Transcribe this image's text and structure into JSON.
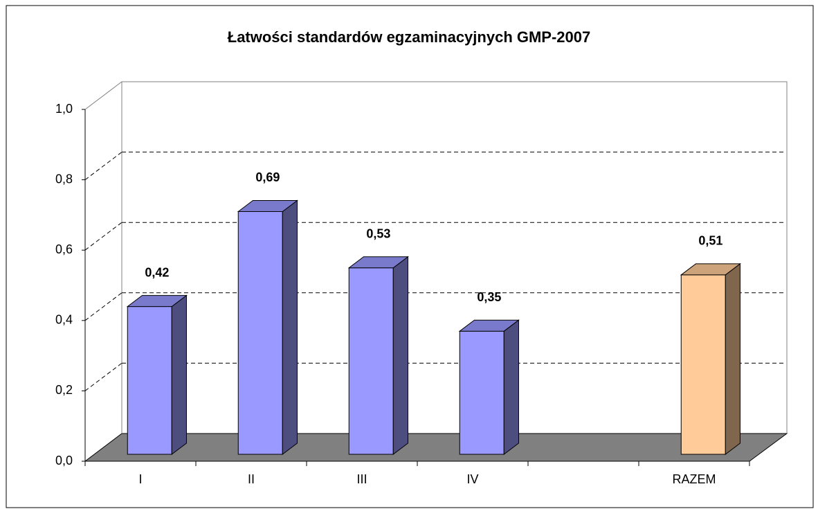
{
  "chart_data": {
    "type": "bar3d",
    "title": "Łatwości standardów egzaminacyjnych GMP-2007",
    "categories": [
      "I",
      "II",
      "III",
      "IV",
      null,
      "RAZEM"
    ],
    "values": [
      0.42,
      0.69,
      0.53,
      0.35,
      null,
      0.51
    ],
    "value_labels": [
      "0,42",
      "0,69",
      "0,53",
      "0,35",
      null,
      "0,51"
    ],
    "colors": [
      "#9999ff",
      "#9999ff",
      "#9999ff",
      "#9999ff",
      null,
      "#ffcc99"
    ],
    "ylim": [
      0,
      1
    ],
    "yticks": [
      {
        "value": 0,
        "label": "0,0"
      },
      {
        "value": 0.2,
        "label": "0,2"
      },
      {
        "value": 0.4,
        "label": "0,4"
      },
      {
        "value": 0.6,
        "label": "0,6"
      },
      {
        "value": 0.8,
        "label": "0,8"
      },
      {
        "value": 1,
        "label": "1,0"
      }
    ],
    "grid": true
  }
}
